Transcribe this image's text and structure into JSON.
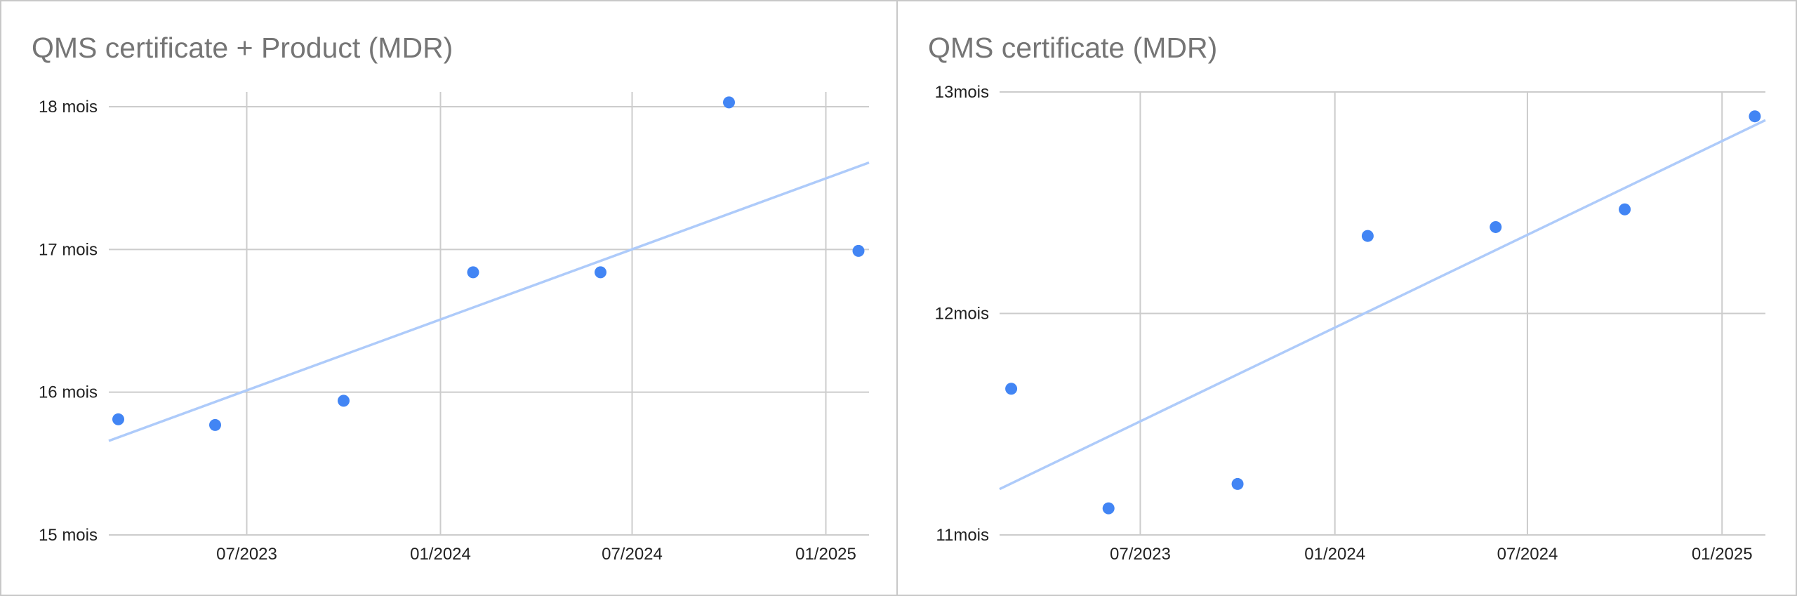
{
  "chart_data": [
    {
      "type": "scatter",
      "title": "QMS certificate + Product (MDR)",
      "xlabel": "",
      "ylabel": "",
      "x": [
        "2023-03-01",
        "2023-06-01",
        "2023-10-01",
        "2024-02-01",
        "2024-06-01",
        "2024-10-01",
        "2025-02-01"
      ],
      "y": [
        15.81,
        15.77,
        15.94,
        16.84,
        16.84,
        18.03,
        16.99
      ],
      "xlim": [
        "2023-02-20",
        "2025-02-11"
      ],
      "ylim": [
        15,
        18
      ],
      "x_ticks": [
        "07/2023",
        "01/2024",
        "07/2024",
        "01/2025"
      ],
      "x_tick_dates": [
        "2023-07-01",
        "2024-01-01",
        "2024-07-01",
        "2025-01-01"
      ],
      "y_ticks": [
        15,
        16,
        17,
        18
      ],
      "y_tick_labels": [
        "15 mois",
        "16 mois",
        "17 mois",
        "18 mois"
      ],
      "trendline": "linear",
      "grid": true,
      "legend": "none",
      "colors": {
        "points": "#4285f4",
        "trendline": "#aecbfa",
        "grid": "#cccccc"
      }
    },
    {
      "type": "scatter",
      "title": "QMS certificate (MDR)",
      "xlabel": "",
      "ylabel": "",
      "x": [
        "2023-03-01",
        "2023-06-01",
        "2023-10-01",
        "2024-02-01",
        "2024-06-01",
        "2024-10-01",
        "2025-02-01"
      ],
      "y": [
        11.66,
        11.12,
        11.23,
        12.35,
        12.39,
        12.47,
        12.89
      ],
      "xlim": [
        "2023-02-18",
        "2025-02-11"
      ],
      "ylim": [
        11,
        13
      ],
      "x_ticks": [
        "07/2023",
        "01/2024",
        "07/2024",
        "01/2025"
      ],
      "x_tick_dates": [
        "2023-07-01",
        "2024-01-01",
        "2024-07-01",
        "2025-01-01"
      ],
      "y_ticks": [
        11,
        12,
        13
      ],
      "y_tick_labels": [
        "11mois",
        "12mois",
        "13mois"
      ],
      "trendline": "linear",
      "grid": true,
      "legend": "none",
      "colors": {
        "points": "#4285f4",
        "trendline": "#aecbfa",
        "grid": "#cccccc"
      }
    }
  ]
}
